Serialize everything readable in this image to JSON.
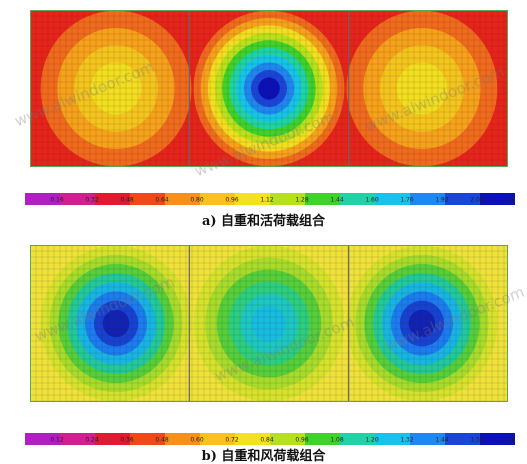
{
  "watermark": "www.alwindoor.com",
  "panels": [
    {
      "caption": "a)  自重和活荷载组合",
      "colorbar_ticks": [
        "0.16",
        "0.32",
        "0.48",
        "0.64",
        "0.80",
        "0.96",
        "1.12",
        "1.28",
        "1.44",
        "1.60",
        "1.76",
        "1.92",
        "2.08",
        "2.24"
      ],
      "background_color": "#e8231a",
      "circles": [
        {
          "cx_frac": 0.18,
          "rings": [
            "#f26a1c",
            "#f7a21a",
            "#f5c51c",
            "#f3df1f"
          ]
        },
        {
          "cx_frac": 0.5,
          "rings": [
            "#f26a1c",
            "#f7a21a",
            "#f3df1f",
            "#b9e21a",
            "#3fd22b",
            "#1fd3a6",
            "#15c4e8",
            "#1e88f0",
            "#1a45d8",
            "#0b10b8"
          ]
        },
        {
          "cx_frac": 0.82,
          "rings": [
            "#f26a1c",
            "#f7a21a",
            "#f5c51c",
            "#f3df1f"
          ]
        }
      ]
    },
    {
      "caption": "b)  自重和风荷载组合",
      "colorbar_ticks": [
        "0.12",
        "0.24",
        "0.36",
        "0.48",
        "0.60",
        "0.72",
        "0.84",
        "0.96",
        "1.08",
        "1.20",
        "1.32",
        "1.44",
        "1.56",
        "1.68"
      ],
      "background_color": "#f0e23a",
      "circles": [
        {
          "cx_frac": 0.18,
          "rings": [
            "#d7e22c",
            "#a7dc2a",
            "#55cf3a",
            "#22c99a",
            "#18b5e3",
            "#1b7df0",
            "#1843d2",
            "#1222b5"
          ]
        },
        {
          "cx_frac": 0.5,
          "rings": [
            "#d7e22c",
            "#a7dc2a",
            "#55cf3a",
            "#2ccf80",
            "#1ec7c2",
            "#17bde0"
          ]
        },
        {
          "cx_frac": 0.82,
          "rings": [
            "#d7e22c",
            "#a7dc2a",
            "#55cf3a",
            "#22c99a",
            "#18b5e3",
            "#1b7df0",
            "#1843d2",
            "#1222b5"
          ]
        }
      ]
    }
  ],
  "colorbar_colors": [
    "#b020c0",
    "#d02090",
    "#e01a30",
    "#f04818",
    "#f7901a",
    "#f7c31c",
    "#f3e21f",
    "#b5e01a",
    "#3fd22b",
    "#1fd3a6",
    "#15c4e8",
    "#1e88f0",
    "#1a45d8",
    "#0b10b8"
  ]
}
